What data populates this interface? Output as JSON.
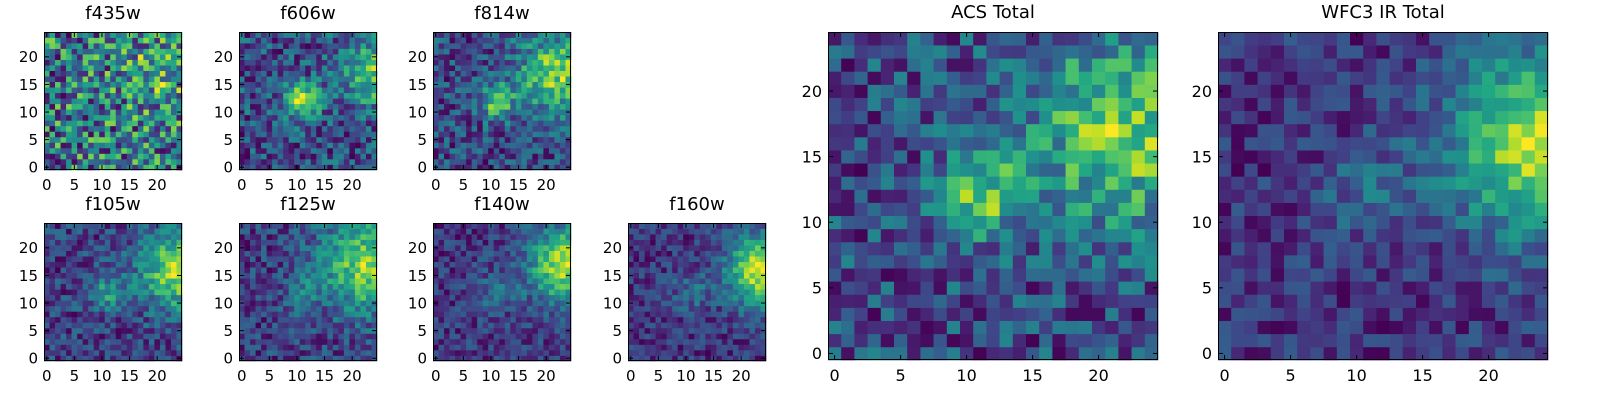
{
  "chart_data": [
    {
      "type": "heatmap",
      "title": "f435w",
      "colormap": "viridis",
      "grid_size": [
        25,
        25
      ],
      "xlim": [
        0,
        24
      ],
      "ylim": [
        0,
        24
      ],
      "xticks": [
        0,
        5,
        10,
        15,
        20
      ],
      "yticks": [
        0,
        5,
        10,
        15,
        20
      ],
      "origin": "lower",
      "pattern": "uniformly noisy, faint bright region top-right",
      "noise": 0.55,
      "features": [
        {
          "cx": 20,
          "cy": 17,
          "r": 5,
          "amp": 0.15
        }
      ]
    },
    {
      "type": "heatmap",
      "title": "f606w",
      "colormap": "viridis",
      "grid_size": [
        25,
        25
      ],
      "xlim": [
        0,
        24
      ],
      "ylim": [
        0,
        24
      ],
      "xticks": [
        0,
        5,
        10,
        15,
        20
      ],
      "yticks": [
        0,
        5,
        10,
        15,
        20
      ],
      "origin": "lower",
      "pattern": "central compact source near (11,12), bright right edge",
      "noise": 0.4,
      "features": [
        {
          "cx": 11,
          "cy": 12,
          "r": 2.2,
          "amp": 0.5
        },
        {
          "cx": 24,
          "cy": 17,
          "r": 4,
          "amp": 0.4
        }
      ]
    },
    {
      "type": "heatmap",
      "title": "f814w",
      "colormap": "viridis",
      "grid_size": [
        25,
        25
      ],
      "xlim": [
        0,
        24
      ],
      "ylim": [
        0,
        24
      ],
      "xticks": [
        0,
        5,
        10,
        15,
        20
      ],
      "yticks": [
        0,
        5,
        10,
        15,
        20
      ],
      "origin": "lower",
      "pattern": "central compact source near (11,12), bright region top-right",
      "noise": 0.4,
      "features": [
        {
          "cx": 11,
          "cy": 12,
          "r": 2.2,
          "amp": 0.45
        },
        {
          "cx": 22,
          "cy": 17,
          "r": 5,
          "amp": 0.5
        }
      ]
    },
    {
      "type": "heatmap",
      "title": "f105w",
      "colormap": "viridis",
      "grid_size": [
        25,
        25
      ],
      "xlim": [
        0,
        24
      ],
      "ylim": [
        0,
        24
      ],
      "xticks": [
        0,
        5,
        10,
        15,
        20
      ],
      "yticks": [
        0,
        5,
        10,
        15,
        20
      ],
      "origin": "lower",
      "pattern": "faint central source, bright right edge",
      "noise": 0.35,
      "features": [
        {
          "cx": 11,
          "cy": 12,
          "r": 2.5,
          "amp": 0.3
        },
        {
          "cx": 24,
          "cy": 16,
          "r": 5,
          "amp": 0.6
        }
      ]
    },
    {
      "type": "heatmap",
      "title": "f125w",
      "colormap": "viridis",
      "grid_size": [
        25,
        25
      ],
      "xlim": [
        0,
        24
      ],
      "ylim": [
        0,
        24
      ],
      "xticks": [
        0,
        5,
        10,
        15,
        20
      ],
      "yticks": [
        0,
        5,
        10,
        15,
        20
      ],
      "origin": "lower",
      "pattern": "bright extended region right side",
      "noise": 0.35,
      "features": [
        {
          "cx": 11,
          "cy": 12,
          "r": 2.5,
          "amp": 0.2
        },
        {
          "cx": 23,
          "cy": 17,
          "r": 6,
          "amp": 0.6
        }
      ]
    },
    {
      "type": "heatmap",
      "title": "f140w",
      "colormap": "viridis",
      "grid_size": [
        25,
        25
      ],
      "xlim": [
        0,
        24
      ],
      "ylim": [
        0,
        24
      ],
      "xticks": [
        0,
        5,
        10,
        15,
        20
      ],
      "yticks": [
        0,
        5,
        10,
        15,
        20
      ],
      "origin": "lower",
      "pattern": "dark background, bright region right edge",
      "noise": 0.3,
      "features": [
        {
          "cx": 11,
          "cy": 12,
          "r": 2.5,
          "amp": 0.2
        },
        {
          "cx": 24,
          "cy": 17,
          "r": 5,
          "amp": 0.7
        }
      ]
    },
    {
      "type": "heatmap",
      "title": "f160w",
      "colormap": "viridis",
      "grid_size": [
        25,
        25
      ],
      "xlim": [
        0,
        24
      ],
      "ylim": [
        0,
        24
      ],
      "xticks": [
        0,
        5,
        10,
        15,
        20
      ],
      "yticks": [
        0,
        5,
        10,
        15,
        20
      ],
      "origin": "lower",
      "pattern": "dark background, bright compact region right edge",
      "noise": 0.3,
      "features": [
        {
          "cx": 11,
          "cy": 12,
          "r": 2.5,
          "amp": 0.2
        },
        {
          "cx": 24,
          "cy": 16,
          "r": 4.5,
          "amp": 0.8
        }
      ]
    },
    {
      "type": "heatmap",
      "title": "ACS Total",
      "colormap": "viridis",
      "grid_size": [
        25,
        25
      ],
      "xlim": [
        0,
        24
      ],
      "ylim": [
        0,
        24
      ],
      "xticks": [
        0,
        5,
        10,
        15,
        20
      ],
      "yticks": [
        0,
        5,
        10,
        15,
        20
      ],
      "origin": "lower",
      "pattern": "noisy, bright source near (11,12) and bright region top-right",
      "noise": 0.4,
      "features": [
        {
          "cx": 11,
          "cy": 12,
          "r": 2.3,
          "amp": 0.45
        },
        {
          "cx": 22,
          "cy": 17,
          "r": 5,
          "amp": 0.5
        }
      ]
    },
    {
      "type": "heatmap",
      "title": "WFC3 IR Total",
      "colormap": "viridis",
      "grid_size": [
        25,
        25
      ],
      "xlim": [
        0,
        24
      ],
      "ylim": [
        0,
        24
      ],
      "xticks": [
        0,
        5,
        10,
        15,
        20
      ],
      "yticks": [
        0,
        5,
        10,
        15,
        20
      ],
      "origin": "lower",
      "pattern": "dark background, bright region right edge",
      "noise": 0.3,
      "features": [
        {
          "cx": 11,
          "cy": 12,
          "r": 2.5,
          "amp": 0.2
        },
        {
          "cx": 24,
          "cy": 16,
          "r": 5,
          "amp": 0.75
        }
      ]
    }
  ]
}
